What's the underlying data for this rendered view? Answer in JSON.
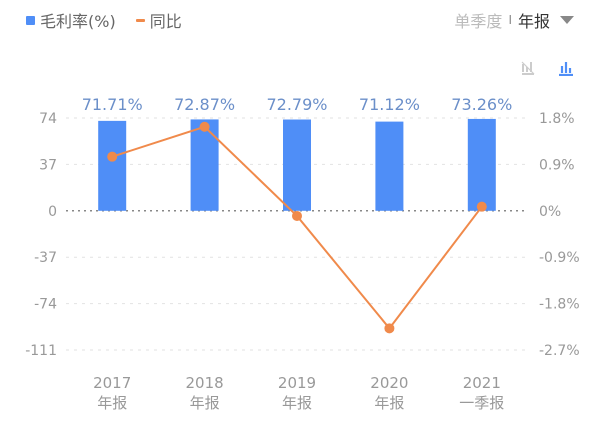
{
  "legend": {
    "bar_label": "毛利率(%)",
    "line_label": "同比"
  },
  "period_selector": {
    "inactive": "单季度",
    "separator": "I",
    "active": "年报"
  },
  "toolbar": {
    "icons": [
      "line-chart-off-icon",
      "bar-chart-icon"
    ]
  },
  "colors": {
    "bar": "#4f8ef7",
    "line": "#f08a4b",
    "bar_label": "#6b8fc9",
    "axis_text": "#999999"
  },
  "chart_data": {
    "type": "bar",
    "categories": [
      [
        "2017",
        "年报"
      ],
      [
        "2018",
        "年报"
      ],
      [
        "2019",
        "年报"
      ],
      [
        "2020",
        "年报"
      ],
      [
        "2021",
        "一季报"
      ]
    ],
    "series": [
      {
        "name": "毛利率(%)",
        "type": "bar",
        "axis": "left",
        "values": [
          71.71,
          72.87,
          72.79,
          71.12,
          73.26
        ],
        "labels": [
          "71.71%",
          "72.87%",
          "72.79%",
          "71.12%",
          "73.26%"
        ]
      },
      {
        "name": "同比",
        "type": "line",
        "axis": "right",
        "values": [
          1.05,
          1.63,
          -0.1,
          -2.28,
          0.08
        ]
      }
    ],
    "left_axis": {
      "ylim": [
        -111,
        74
      ],
      "ticks": [
        "74",
        "37",
        "0",
        "-37",
        "-74",
        "-111"
      ],
      "tick_values": [
        74,
        37,
        0,
        -37,
        -74,
        -111
      ]
    },
    "right_axis": {
      "ylim": [
        -2.7,
        1.8
      ],
      "ticks": [
        "1.8%",
        "0.9%",
        "0%",
        "-0.9%",
        "-1.8%",
        "-2.7%"
      ]
    },
    "grid": true
  }
}
